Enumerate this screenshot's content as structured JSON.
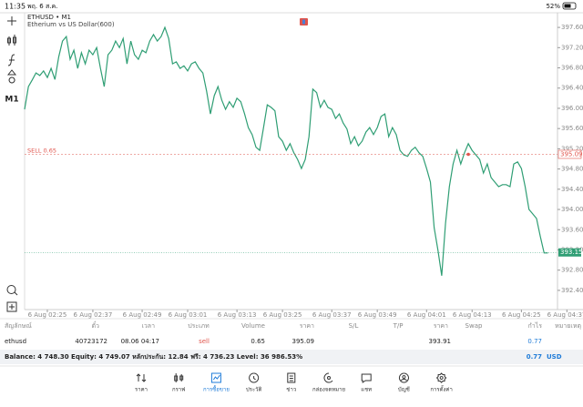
{
  "status_bar": {
    "time": "11:35",
    "date": "พฤ. 6 ส.ค.",
    "battery": "52%"
  },
  "chart": {
    "symbol": "ETHUSD • M1",
    "description": "Etherium vs US Dollar(600)",
    "timeframe": "M1",
    "color": "#2f9e74",
    "values": [
      395.98,
      396.43,
      396.56,
      396.7,
      396.65,
      396.74,
      396.61,
      396.79,
      396.57,
      397.02,
      397.33,
      397.42,
      396.97,
      397.15,
      396.79,
      397.1,
      396.88,
      397.15,
      397.06,
      397.2,
      396.79,
      396.43,
      397.06,
      397.15,
      397.33,
      397.2,
      397.38,
      396.88,
      397.33,
      397.06,
      396.97,
      397.15,
      397.1,
      397.33,
      397.46,
      397.33,
      397.42,
      397.6,
      397.38,
      396.88,
      396.92,
      396.79,
      396.84,
      396.74,
      396.88,
      396.92,
      396.79,
      396.7,
      396.34,
      395.89,
      396.25,
      396.43,
      396.16,
      395.98,
      396.13,
      396.02,
      396.2,
      396.13,
      395.89,
      395.62,
      395.48,
      395.23,
      395.17,
      395.62,
      396.07,
      396.02,
      395.95,
      395.44,
      395.35,
      395.17,
      395.3,
      395.12,
      394.99,
      394.81,
      394.99,
      395.44,
      396.38,
      396.31,
      396.02,
      396.16,
      396.02,
      395.98,
      395.8,
      395.89,
      395.71,
      395.59,
      395.3,
      395.44,
      395.26,
      395.35,
      395.53,
      395.62,
      395.48,
      395.62,
      395.84,
      395.89,
      395.44,
      395.62,
      395.48,
      395.17,
      395.08,
      395.05,
      395.17,
      395.23,
      395.12,
      395.05,
      394.81,
      394.54,
      393.64,
      393.19,
      392.69,
      393.73,
      394.45,
      394.9,
      395.17,
      394.9,
      395.12,
      395.3,
      395.17,
      395.08,
      394.99,
      394.72,
      394.9,
      394.63,
      394.54,
      394.45,
      394.49,
      394.49,
      394.45,
      394.9,
      394.94,
      394.81,
      394.45,
      394.0,
      393.91,
      393.82,
      393.46,
      393.14,
      393.14
    ],
    "xlim": [
      0,
      141
    ],
    "ylim": [
      392.02,
      397.89
    ],
    "xticks": [
      {
        "value": 6,
        "label": "6 Aug 02:25"
      },
      {
        "value": 18,
        "label": "6 Aug 02:37"
      },
      {
        "value": 31,
        "label": "6 Aug 02:49"
      },
      {
        "value": 43,
        "label": "6 Aug 03:01"
      },
      {
        "value": 56,
        "label": "6 Aug 03:13"
      },
      {
        "value": 68,
        "label": "6 Aug 03:25"
      },
      {
        "value": 81,
        "label": "6 Aug 03:37"
      },
      {
        "value": 93,
        "label": "6 Aug 03:49"
      },
      {
        "value": 106,
        "label": "6 Aug 04:01"
      },
      {
        "value": 118,
        "label": "6 Aug 04:13"
      },
      {
        "value": 131,
        "label": "6 Aug 04:25"
      },
      {
        "value": 143,
        "label": "6 Aug 04:37"
      }
    ],
    "yticks": [
      {
        "value": 397.6,
        "label": "397.60"
      },
      {
        "value": 397.2,
        "label": "397.20"
      },
      {
        "value": 396.8,
        "label": "396.80"
      },
      {
        "value": 396.4,
        "label": "396.40"
      },
      {
        "value": 396.0,
        "label": "396.00"
      },
      {
        "value": 395.6,
        "label": "395.60"
      },
      {
        "value": 395.2,
        "label": "395.20"
      },
      {
        "value": 394.8,
        "label": "394.80"
      },
      {
        "value": 394.4,
        "label": "394.40"
      },
      {
        "value": 394.0,
        "label": "394.00"
      },
      {
        "value": 393.6,
        "label": "393.60"
      },
      {
        "value": 393.2,
        "label": "393.20"
      },
      {
        "value": 392.8,
        "label": "392.80"
      },
      {
        "value": 392.4,
        "label": "392.40"
      }
    ],
    "order_line": {
      "label": "SELL 0.65",
      "price": 395.09,
      "color": "#e0544c"
    },
    "current_price": {
      "price": 393.15,
      "color": "#2f9e74"
    },
    "entry": {
      "index": 117,
      "price": 395.09
    }
  },
  "table": {
    "headers": [
      "สัญลักษณ์",
      "ตั๋ว",
      "เวลา",
      "ประเภท",
      "Volume",
      "ราคา",
      "S/L",
      "T/P",
      "ราคา",
      "Swap",
      "กำไร",
      "หมายเหตุ"
    ],
    "rows": [
      {
        "symbol": "ethusd",
        "ticket": 40723172,
        "time": "08.06 04:17",
        "type": "sell",
        "volume": 0.65,
        "price": 395.09,
        "current_price": 393.91,
        "profit": 0.77
      }
    ]
  },
  "summary": {
    "text": "Balance: 4 748.30 Equity: 4 749.07 หลักประกัน: 12.84 ฟรี: 4 736.23 Level: 36 986.53%",
    "profit": 0.77,
    "currency": "USD"
  },
  "tabs": {
    "items": [
      "ราคา",
      "กราฟ",
      "การซื้อขาย",
      "ประวัติ",
      "ข่าว",
      "กล่องจดหมาย",
      "แชท",
      "บัญชี",
      "การตั้งค่า"
    ],
    "active": 2
  }
}
